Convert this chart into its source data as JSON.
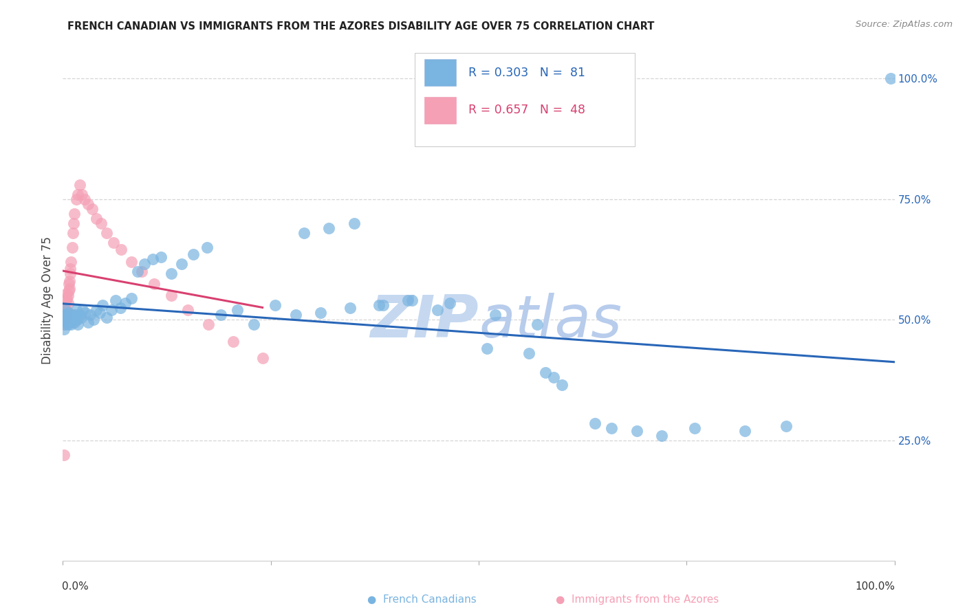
{
  "title": "FRENCH CANADIAN VS IMMIGRANTS FROM THE AZORES DISABILITY AGE OVER 75 CORRELATION CHART",
  "source": "Source: ZipAtlas.com",
  "ylabel": "Disability Age Over 75",
  "legend_blue_label": "French Canadians",
  "legend_pink_label": "Immigrants from the Azores",
  "blue_color": "#7ab4e0",
  "pink_color": "#f5a0b5",
  "blue_line_color": "#2866b8",
  "pink_line_color": "#d84070",
  "watermark_zip_color": "#c5d8f0",
  "watermark_atlas_color": "#b8ccec",
  "background_color": "#ffffff",
  "grid_color": "#d5d5d5",
  "blue_x": [
    0.001,
    0.002,
    0.002,
    0.003,
    0.003,
    0.004,
    0.004,
    0.005,
    0.005,
    0.006,
    0.006,
    0.007,
    0.007,
    0.008,
    0.008,
    0.009,
    0.01,
    0.01,
    0.011,
    0.012,
    0.013,
    0.014,
    0.015,
    0.016,
    0.017,
    0.018,
    0.02,
    0.022,
    0.024,
    0.027,
    0.03,
    0.033,
    0.037,
    0.04,
    0.044,
    0.048,
    0.053,
    0.058,
    0.063,
    0.069,
    0.075,
    0.082,
    0.09,
    0.098,
    0.108,
    0.118,
    0.13,
    0.143,
    0.157,
    0.173,
    0.19,
    0.21,
    0.23,
    0.255,
    0.28,
    0.31,
    0.345,
    0.38,
    0.42,
    0.465,
    0.51,
    0.56,
    0.29,
    0.32,
    0.35,
    0.385,
    0.415,
    0.45,
    0.52,
    0.57,
    0.58,
    0.59,
    0.6,
    0.64,
    0.66,
    0.69,
    0.72,
    0.76,
    0.82,
    0.87,
    0.995
  ],
  "blue_y": [
    0.48,
    0.51,
    0.5,
    0.49,
    0.52,
    0.505,
    0.495,
    0.51,
    0.5,
    0.49,
    0.515,
    0.5,
    0.51,
    0.495,
    0.505,
    0.51,
    0.5,
    0.49,
    0.505,
    0.51,
    0.5,
    0.495,
    0.51,
    0.52,
    0.5,
    0.49,
    0.51,
    0.505,
    0.52,
    0.515,
    0.495,
    0.51,
    0.5,
    0.52,
    0.515,
    0.53,
    0.505,
    0.52,
    0.54,
    0.525,
    0.535,
    0.545,
    0.6,
    0.615,
    0.625,
    0.63,
    0.595,
    0.615,
    0.635,
    0.65,
    0.51,
    0.52,
    0.49,
    0.53,
    0.51,
    0.515,
    0.525,
    0.53,
    0.54,
    0.535,
    0.44,
    0.43,
    0.68,
    0.69,
    0.7,
    0.53,
    0.54,
    0.52,
    0.51,
    0.49,
    0.39,
    0.38,
    0.365,
    0.285,
    0.275,
    0.27,
    0.26,
    0.275,
    0.27,
    0.28,
    1.0
  ],
  "pink_x": [
    0.001,
    0.001,
    0.001,
    0.002,
    0.002,
    0.002,
    0.003,
    0.003,
    0.003,
    0.004,
    0.004,
    0.005,
    0.005,
    0.005,
    0.006,
    0.006,
    0.007,
    0.007,
    0.008,
    0.008,
    0.009,
    0.009,
    0.01,
    0.011,
    0.012,
    0.013,
    0.014,
    0.016,
    0.018,
    0.02,
    0.023,
    0.026,
    0.03,
    0.035,
    0.04,
    0.046,
    0.053,
    0.061,
    0.07,
    0.082,
    0.095,
    0.11,
    0.13,
    0.15,
    0.175,
    0.205,
    0.001,
    0.24
  ],
  "pink_y": [
    0.49,
    0.51,
    0.5,
    0.51,
    0.495,
    0.52,
    0.505,
    0.515,
    0.53,
    0.51,
    0.54,
    0.52,
    0.545,
    0.555,
    0.535,
    0.55,
    0.56,
    0.575,
    0.565,
    0.58,
    0.595,
    0.605,
    0.62,
    0.65,
    0.68,
    0.7,
    0.72,
    0.75,
    0.76,
    0.78,
    0.76,
    0.75,
    0.74,
    0.73,
    0.71,
    0.7,
    0.68,
    0.66,
    0.645,
    0.62,
    0.6,
    0.575,
    0.55,
    0.52,
    0.49,
    0.455,
    0.22,
    0.42
  ],
  "xlim": [
    0.0,
    1.0
  ],
  "ylim": [
    0.0,
    1.08
  ],
  "ytick_positions": [
    0.25,
    0.5,
    0.75,
    1.0
  ],
  "ytick_labels": [
    "25.0%",
    "50.0%",
    "75.0%",
    "100.0%"
  ],
  "xtick_left_label": "0.0%",
  "xtick_right_label": "100.0%"
}
